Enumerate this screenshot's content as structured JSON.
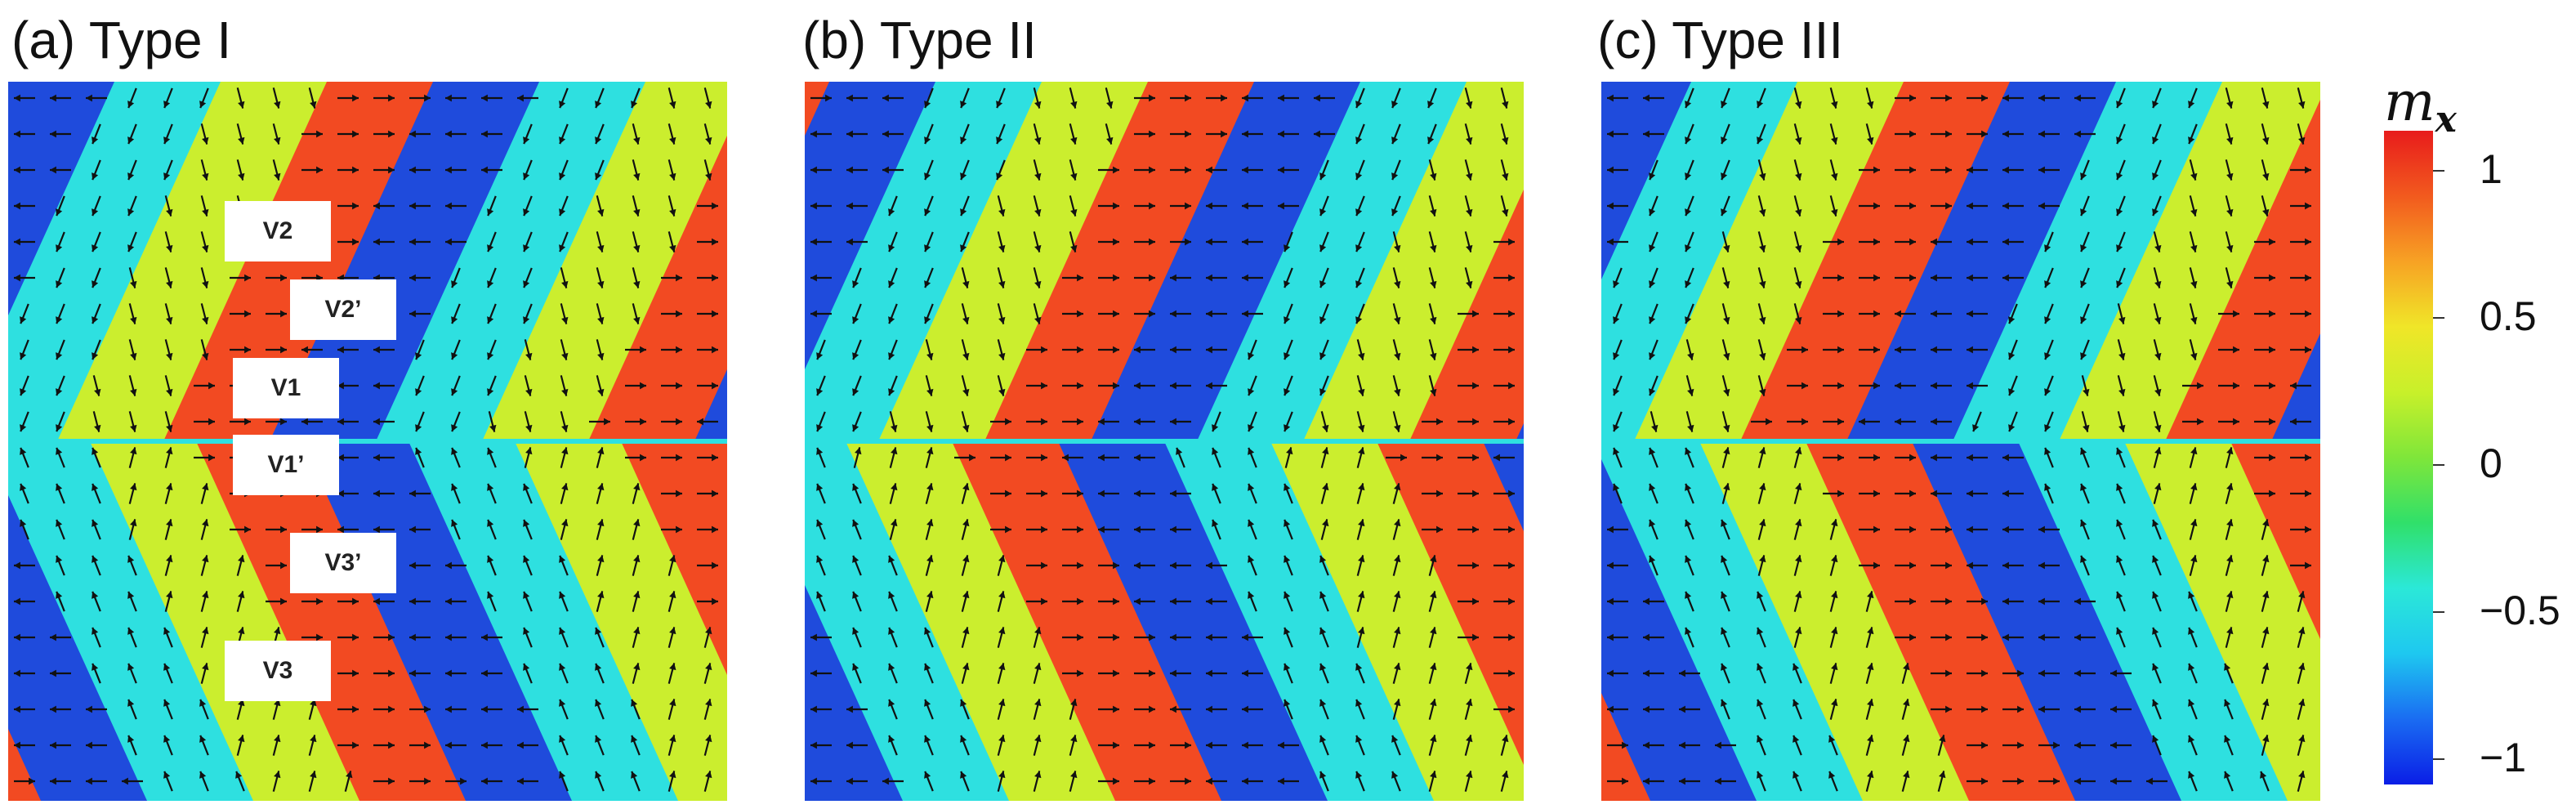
{
  "panels": [
    {
      "title": "(a) Type I",
      "key": "a"
    },
    {
      "title": "(b) Type II",
      "key": "b"
    },
    {
      "title": "(c) Type III",
      "key": "c"
    }
  ],
  "vortex_labels": [
    "V2",
    "V2’",
    "V1",
    "V1’",
    "V3’",
    "V3"
  ],
  "colorbar": {
    "variable": "m",
    "subscript": "x",
    "ticks": [
      "1",
      "0.5",
      "0",
      "−0.5",
      "−1"
    ],
    "range": [
      -1,
      1
    ],
    "colors": [
      "#0a1ee6",
      "#1a6cf2",
      "#1ec8f0",
      "#2be8d8",
      "#30e06a",
      "#7fe63a",
      "#c8f02a",
      "#f0e628",
      "#f7a224",
      "#f25a1e",
      "#e81c1c"
    ]
  },
  "domain_colors": {
    "blue": "#1f4bdc",
    "cyan": "#2ee0e0",
    "yellow": "#cbee2e",
    "red": "#f24a22"
  }
}
